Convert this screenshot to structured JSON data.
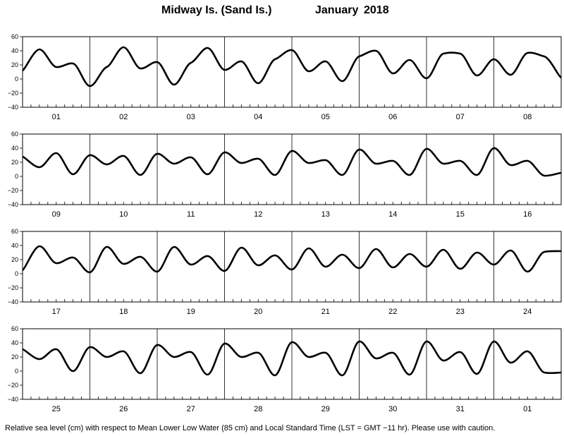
{
  "title": {
    "location": "Midway Is. (Sand Is.)",
    "month": "January",
    "year": "2018"
  },
  "footer": "Relative sea level (cm) with respect to Mean Lower Low Water (85 cm) and Local Standard Time (LST = GMT −11 hr). Please use with caution.",
  "chart_data": {
    "type": "line",
    "ylim": [
      -40,
      60
    ],
    "yticks": [
      -40,
      -20,
      0,
      20,
      40,
      60
    ],
    "grid": "vertical day boundaries",
    "panels": [
      {
        "days": [
          "01",
          "02",
          "03",
          "04",
          "05",
          "06",
          "07",
          "08"
        ],
        "x_hours": [
          0,
          6,
          12,
          18,
          24,
          30,
          36,
          42,
          48,
          54,
          60,
          66,
          72,
          78,
          84,
          90,
          96,
          102,
          108,
          114,
          120,
          126,
          132,
          138,
          144,
          150,
          156,
          162,
          168,
          174,
          180,
          186,
          192
        ],
        "y": [
          12,
          42,
          17,
          22,
          -10,
          17,
          45,
          15,
          24,
          -8,
          23,
          44,
          13,
          25,
          -6,
          28,
          41,
          11,
          25,
          -3,
          32,
          40,
          8,
          27,
          1,
          36,
          36,
          5,
          28,
          6,
          37,
          32,
          2
        ]
      },
      {
        "days": [
          "09",
          "10",
          "11",
          "12",
          "13",
          "14",
          "15",
          "16"
        ],
        "x_hours": [
          0,
          6,
          12,
          18,
          24,
          30,
          36,
          42,
          48,
          54,
          60,
          66,
          72,
          78,
          84,
          90,
          96,
          102,
          108,
          114,
          120,
          126,
          132,
          138,
          144,
          150,
          156,
          162,
          168,
          174,
          180,
          186,
          192
        ],
        "y": [
          28,
          13,
          33,
          3,
          30,
          17,
          29,
          2,
          32,
          18,
          27,
          3,
          34,
          19,
          25,
          2,
          36,
          19,
          23,
          2,
          38,
          18,
          22,
          2,
          39,
          18,
          22,
          2,
          40,
          16,
          22,
          1,
          5
        ]
      },
      {
        "days": [
          "17",
          "18",
          "19",
          "20",
          "21",
          "22",
          "23",
          "24"
        ],
        "x_hours": [
          0,
          6,
          12,
          18,
          24,
          30,
          36,
          42,
          48,
          54,
          60,
          66,
          72,
          78,
          84,
          90,
          96,
          102,
          108,
          114,
          120,
          126,
          132,
          138,
          144,
          150,
          156,
          162,
          168,
          174,
          180,
          186,
          192
        ],
        "y": [
          5,
          39,
          15,
          23,
          2,
          38,
          14,
          24,
          3,
          38,
          13,
          25,
          4,
          37,
          12,
          26,
          6,
          36,
          10,
          27,
          8,
          35,
          9,
          28,
          10,
          34,
          7,
          30,
          13,
          33,
          3,
          31,
          32
        ]
      },
      {
        "days": [
          "25",
          "26",
          "27",
          "28",
          "29",
          "30",
          "31",
          "01"
        ],
        "x_hours": [
          0,
          6,
          12,
          18,
          24,
          30,
          36,
          42,
          48,
          54,
          60,
          66,
          72,
          78,
          84,
          90,
          96,
          102,
          108,
          114,
          120,
          126,
          132,
          138,
          144,
          150,
          156,
          162,
          168,
          174,
          180,
          186,
          192
        ],
        "y": [
          31,
          17,
          31,
          0,
          34,
          20,
          28,
          -3,
          37,
          20,
          27,
          -5,
          39,
          20,
          26,
          -6,
          41,
          20,
          26,
          -6,
          42,
          18,
          26,
          -5,
          42,
          15,
          27,
          -4,
          42,
          12,
          28,
          -2,
          -2
        ]
      }
    ]
  }
}
